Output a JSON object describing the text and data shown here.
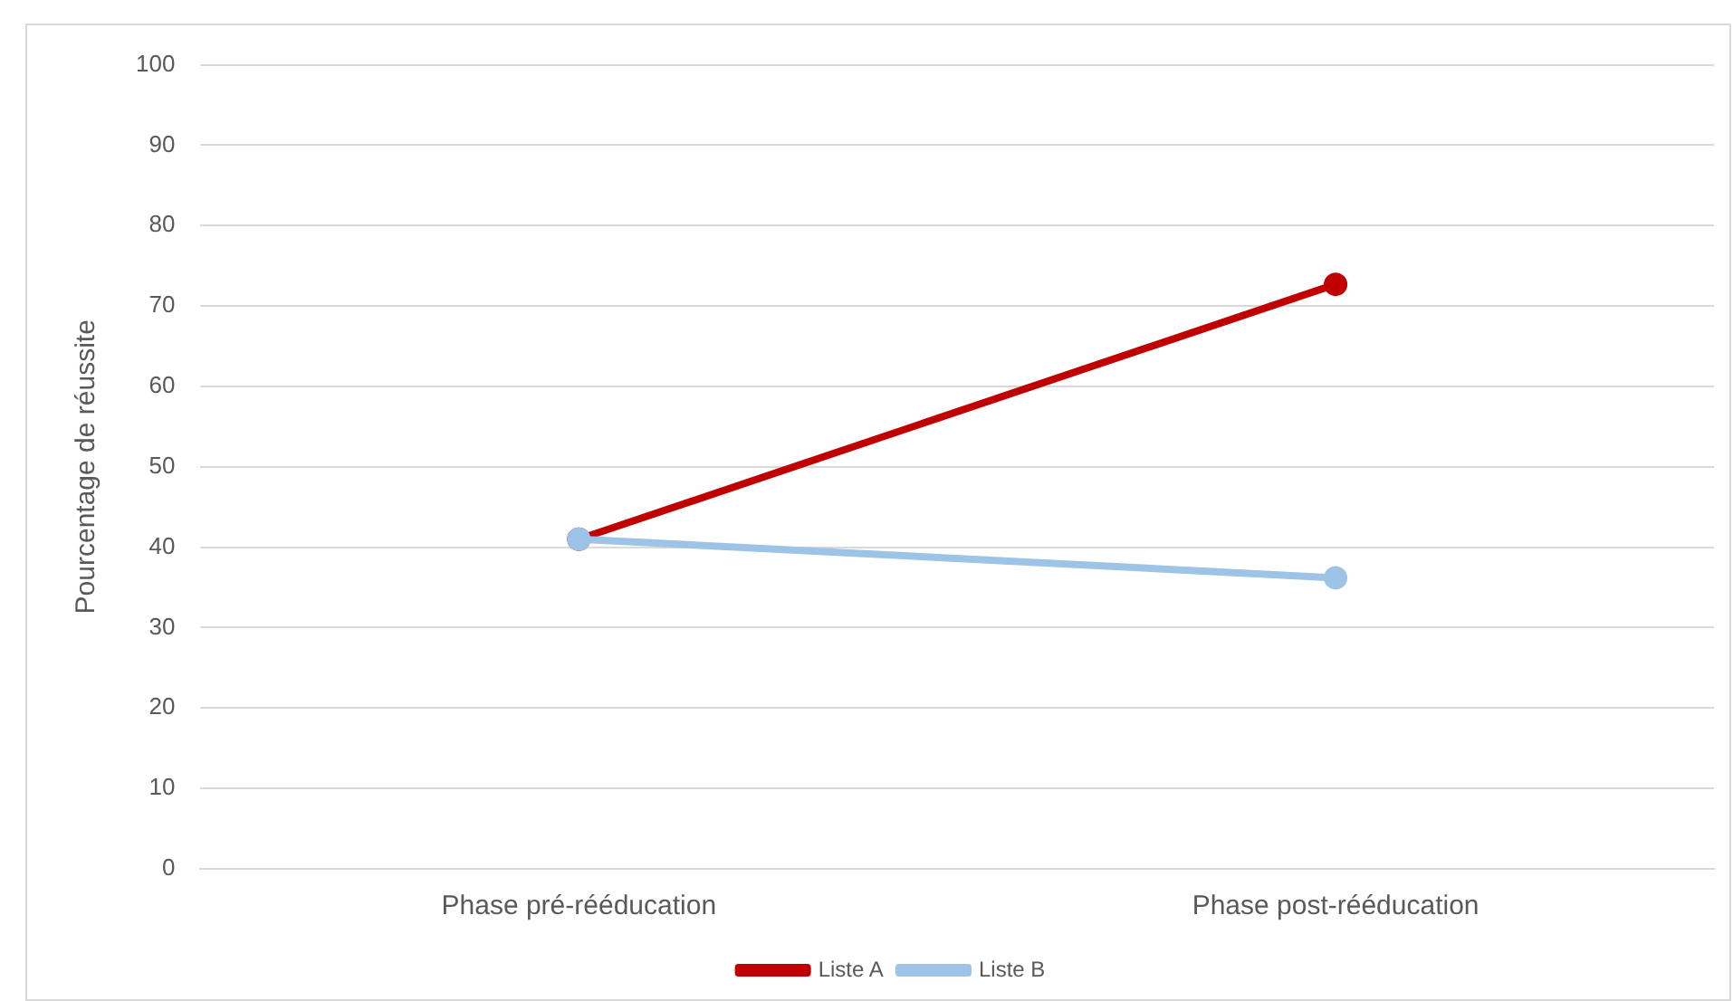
{
  "chart_data": {
    "type": "line",
    "ylabel": "Pourcentage de réussite",
    "categories": [
      "Phase pré-rééducation",
      "Phase post-rééducation"
    ],
    "series": [
      {
        "name": "Liste A",
        "color": "#c00000",
        "values": [
          41,
          72.7
        ]
      },
      {
        "name": "Liste B",
        "color": "#9dc3e6",
        "values": [
          41,
          36.2
        ]
      }
    ],
    "ylim": [
      0,
      100
    ],
    "yticks": [
      0,
      10,
      20,
      30,
      40,
      50,
      60,
      70,
      80,
      90,
      100
    ],
    "grid": "y",
    "legend": "bottom",
    "marker": "circle",
    "line_style": "solid"
  }
}
